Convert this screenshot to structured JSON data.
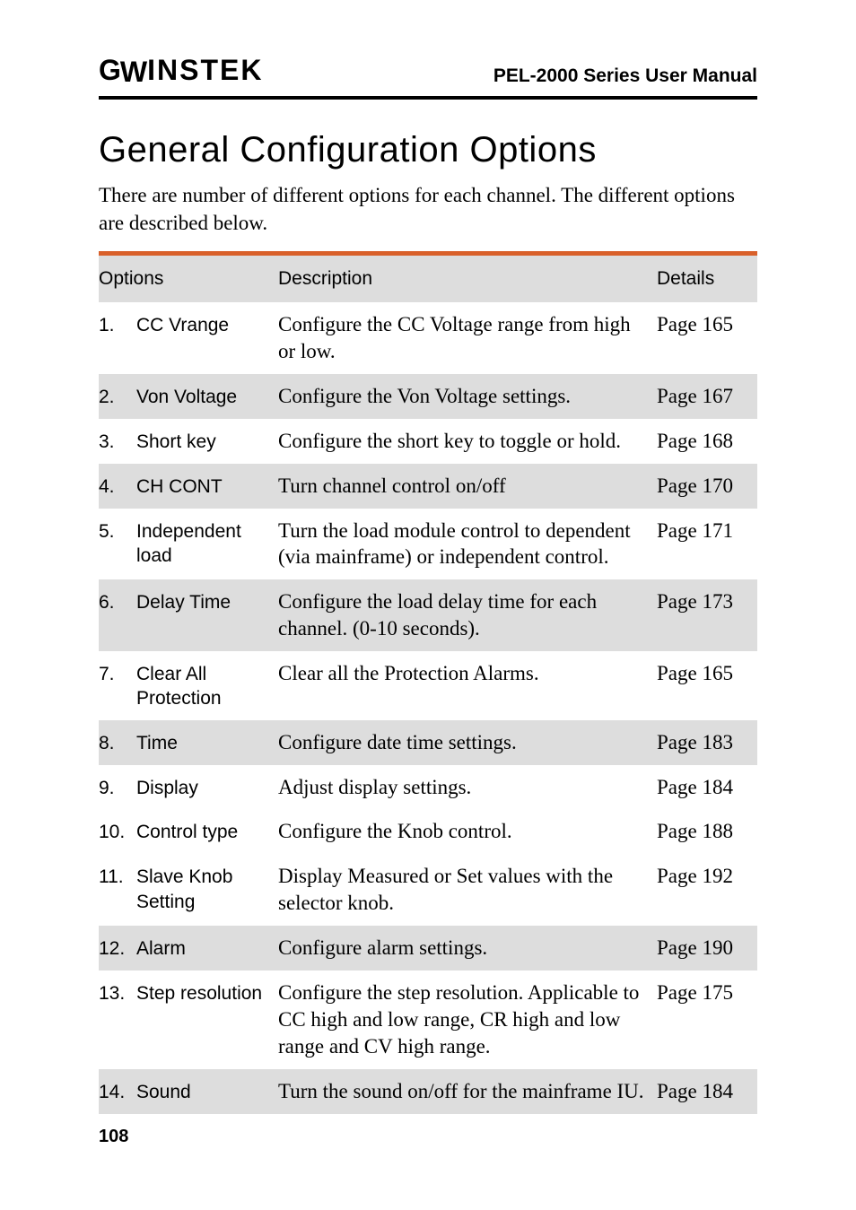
{
  "header": {
    "brand_g": "G",
    "brand_w": "W",
    "brand_rest": "INSTEK",
    "manual_title": "PEL-2000 Series User Manual"
  },
  "section": {
    "title": "General Configuration Options",
    "intro": "There are number of different options for each channel. The different options are described below."
  },
  "table": {
    "headers": {
      "options": "Options",
      "description": "Description",
      "details": "Details"
    },
    "rows": [
      {
        "num": "1.",
        "option": "CC Vrange",
        "description": "Configure the CC Voltage range from high or low.",
        "details": "Page 165"
      },
      {
        "num": "2.",
        "option": "Von Voltage",
        "description": "Configure the Von Voltage settings.",
        "details": "Page 167"
      },
      {
        "num": "3.",
        "option": "Short key",
        "description": "Configure the short key to toggle or hold.",
        "details": "Page 168"
      },
      {
        "num": "4.",
        "option": "CH CONT",
        "description": "Turn channel control on/off",
        "details": "Page 170"
      },
      {
        "num": "5.",
        "option": "Independent load",
        "description": "Turn the load module control to dependent (via mainframe) or independent control.",
        "details": "Page 171"
      },
      {
        "num": "6.",
        "option": "Delay Time",
        "description": "Configure the load delay time for each channel. (0-10 seconds).",
        "details": "Page 173"
      },
      {
        "num": "7.",
        "option": "Clear All Protection",
        "description": "Clear all the Protection Alarms.",
        "details": "Page 165"
      },
      {
        "num": "8.",
        "option": "Time",
        "description": "Configure date time settings.",
        "details": "Page 183"
      },
      {
        "num": "9.",
        "option": "Display",
        "description": "Adjust display settings.",
        "details": "Page 184"
      },
      {
        "num": "10.",
        "option": "Control type",
        "description": "Configure the Knob control.",
        "details": "Page 188"
      },
      {
        "num": "11.",
        "option": "Slave Knob Setting",
        "description": "Display Measured or Set values with the selector knob.",
        "details": "Page 192"
      },
      {
        "num": "12.",
        "option": "Alarm",
        "description": "Configure alarm settings.",
        "details": "Page 190"
      },
      {
        "num": "13.",
        "option": "Step resolution",
        "description": "Configure the step resolution. Applicable to CC high and low range, CR high and low range and CV high range.",
        "details": "Page 175"
      },
      {
        "num": "14.",
        "option": "Sound",
        "description": "Turn the sound on/off for the mainframe IU.",
        "details": "Page 184"
      }
    ]
  },
  "page_number": "108",
  "style": {
    "accent_color": "#d9602a",
    "alt_row_bg": "#dddddd",
    "body_font": "Book Antiqua",
    "heading_font": "Trebuchet MS",
    "body_fontsize": 23,
    "heading_fontsize": 40
  }
}
